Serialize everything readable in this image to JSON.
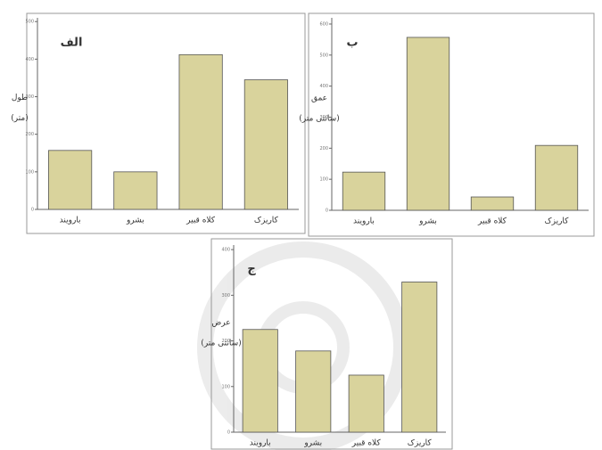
{
  "chart_data": [
    {
      "type": "bar",
      "panel_label": "الف",
      "ylabel": "طول",
      "yunit": "(متر)",
      "categories": [
        "بارویند",
        "بشرو",
        "کلاه قبیر",
        "کاریزک"
      ],
      "values": [
        157,
        100,
        412,
        345
      ],
      "color": "#d9d39c",
      "ylim": [
        0,
        510
      ],
      "yticks": [
        0,
        100,
        200,
        300,
        400,
        500
      ]
    },
    {
      "type": "bar",
      "panel_label": "ب",
      "ylabel": "عمق",
      "yunit": "(سانتی متر)",
      "categories": [
        "بارویند",
        "بشرو",
        "کلاه قبیر",
        "کاریزک"
      ],
      "values": [
        123,
        557,
        43,
        209
      ],
      "color": "#d9d39c",
      "ylim": [
        0,
        620
      ],
      "yticks": [
        0,
        100,
        200,
        300,
        400,
        500,
        600
      ]
    },
    {
      "type": "bar",
      "panel_label": "ج",
      "ylabel": "عرض",
      "yunit": "(سانتی متر)",
      "categories": [
        "بارویند",
        "بشرو",
        "کلاه قبیر",
        "کاریزک"
      ],
      "values": [
        225,
        178,
        125,
        329
      ],
      "color": "#d9d39c",
      "ylim": [
        0,
        410
      ],
      "yticks": [
        0,
        100,
        200,
        300,
        400
      ]
    }
  ]
}
